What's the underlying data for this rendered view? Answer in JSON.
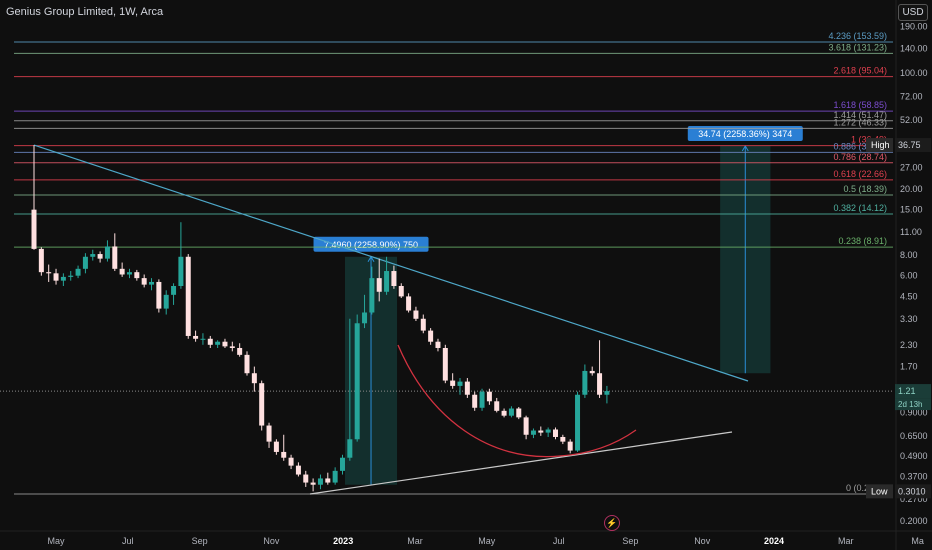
{
  "header": {
    "title": "Genius Group Limited, 1W, Arca",
    "currency": "USD"
  },
  "icons": {
    "flash": "flash-icon"
  },
  "axis": {
    "price_ticks": [
      {
        "label": "190.00",
        "v": 190
      },
      {
        "label": "140.00",
        "v": 140
      },
      {
        "label": "100.00",
        "v": 100
      },
      {
        "label": "72.00",
        "v": 72
      },
      {
        "label": "52.00",
        "v": 52
      },
      {
        "label": "36.75",
        "v": 36.75
      },
      {
        "label": "27.00",
        "v": 27
      },
      {
        "label": "20.00",
        "v": 20
      },
      {
        "label": "15.00",
        "v": 15
      },
      {
        "label": "11.00",
        "v": 11
      },
      {
        "label": "8.00",
        "v": 8
      },
      {
        "label": "6.00",
        "v": 6
      },
      {
        "label": "4.50",
        "v": 4.5
      },
      {
        "label": "3.30",
        "v": 3.3
      },
      {
        "label": "2.30",
        "v": 2.3
      },
      {
        "label": "1.70",
        "v": 1.7
      },
      {
        "label": "1.21",
        "v": 1.21
      },
      {
        "label": "0.9000",
        "v": 0.9
      },
      {
        "label": "0.6500",
        "v": 0.65
      },
      {
        "label": "0.4900",
        "v": 0.49
      },
      {
        "label": "0.3700",
        "v": 0.37
      },
      {
        "label": "0.3010",
        "v": 0.301
      },
      {
        "label": "0.2700",
        "v": 0.27
      },
      {
        "label": "0.2000",
        "v": 0.2
      }
    ],
    "time_ticks": [
      {
        "label": "May",
        "m": 4
      },
      {
        "label": "Jul",
        "m": 6
      },
      {
        "label": "Sep",
        "m": 8
      },
      {
        "label": "Nov",
        "m": 10
      },
      {
        "label": "2023",
        "m": 12,
        "bold": true
      },
      {
        "label": "Mar",
        "m": 14
      },
      {
        "label": "May",
        "m": 16
      },
      {
        "label": "Jul",
        "m": 18
      },
      {
        "label": "Sep",
        "m": 20
      },
      {
        "label": "Nov",
        "m": 22
      },
      {
        "label": "2024",
        "m": 24,
        "bold": true
      },
      {
        "label": "Mar",
        "m": 26
      },
      {
        "label": "Ma",
        "m": 28
      }
    ]
  },
  "price_badges": {
    "high": {
      "tag": "High",
      "value": "36.75",
      "v": 36.75
    },
    "last": {
      "value": "1.21",
      "sub": "2d 13h",
      "v": 1.21
    },
    "low": {
      "tag": "Low",
      "value": "0.3010",
      "v": 0.301
    }
  },
  "fib_levels": [
    {
      "label": "4.236 (153.59)",
      "v": 153.59,
      "color": "#5b9cc4"
    },
    {
      "label": "3.618 (131.23)",
      "v": 131.23,
      "color": "#7fae8a"
    },
    {
      "label": "2.618 (95.04)",
      "v": 95.04,
      "color": "#e0404f"
    },
    {
      "label": "1.618 (58.85)",
      "v": 58.85,
      "color": "#7c4dcf"
    },
    {
      "label": "1.414 (51.47)",
      "v": 51.47,
      "color": "#9e9e9e"
    },
    {
      "label": "1.272 (46.33)",
      "v": 46.33,
      "color": "#9e9e9e"
    },
    {
      "label": "1 (36.49)",
      "v": 36.49,
      "color": "#e0404f"
    },
    {
      "label": "0.886 (33.23)",
      "v": 33.23,
      "color": "#6d88c4"
    },
    {
      "label": "0.786 (28.74)",
      "v": 28.74,
      "color": "#e05a6a"
    },
    {
      "label": "0.618 (22.66)",
      "v": 22.66,
      "color": "#e0404f"
    },
    {
      "label": "0.5 (18.39)",
      "v": 18.39,
      "color": "#7fae8a"
    },
    {
      "label": "0.382 (14.12)",
      "v": 14.12,
      "color": "#4fb0a0"
    },
    {
      "label": "0.238 (8.91)",
      "v": 8.91,
      "color": "#6ab06a"
    },
    {
      "label": "0 (0.2901)",
      "v": 0.2901,
      "color": "#9e9e9e"
    }
  ],
  "measurements": [
    {
      "label": "7.4960 (2258.90%) 750",
      "m1": 12.05,
      "m2": 13.5,
      "low": 0.33,
      "high": 7.8
    },
    {
      "label": "34.74 (2258.36%) 3474",
      "m1": 22.5,
      "m2": 23.9,
      "low": 1.55,
      "high": 36.3
    }
  ],
  "colors": {
    "up": "#26a69a",
    "down": "#ffe0e0",
    "bg": "#0f0f0f"
  },
  "chart_data": {
    "type": "candlestick",
    "title": "Genius Group Limited, 1W, Arca",
    "y_scale": "log",
    "ylim": [
      0.2,
      190
    ],
    "candles": [
      {
        "w": 1,
        "o": 15.0,
        "h": 36.75,
        "l": 8.6,
        "c": 8.7
      },
      {
        "w": 2,
        "o": 8.7,
        "h": 8.9,
        "l": 6.0,
        "c": 6.3
      },
      {
        "w": 3,
        "o": 6.3,
        "h": 7.0,
        "l": 5.5,
        "c": 6.2
      },
      {
        "w": 4,
        "o": 6.2,
        "h": 6.6,
        "l": 5.3,
        "c": 5.6
      },
      {
        "w": 5,
        "o": 5.6,
        "h": 6.2,
        "l": 5.2,
        "c": 5.9
      },
      {
        "w": 6,
        "o": 5.9,
        "h": 6.4,
        "l": 5.6,
        "c": 6.0
      },
      {
        "w": 7,
        "o": 6.0,
        "h": 6.9,
        "l": 5.8,
        "c": 6.6
      },
      {
        "w": 8,
        "o": 6.6,
        "h": 8.2,
        "l": 6.2,
        "c": 7.8
      },
      {
        "w": 9,
        "o": 7.8,
        "h": 8.6,
        "l": 7.4,
        "c": 8.1
      },
      {
        "w": 10,
        "o": 8.1,
        "h": 8.4,
        "l": 7.2,
        "c": 7.6
      },
      {
        "w": 11,
        "o": 7.6,
        "h": 9.8,
        "l": 7.3,
        "c": 9.0
      },
      {
        "w": 12,
        "o": 9.0,
        "h": 10.8,
        "l": 6.4,
        "c": 6.6
      },
      {
        "w": 13,
        "o": 6.6,
        "h": 7.2,
        "l": 5.9,
        "c": 6.1
      },
      {
        "w": 14,
        "o": 6.1,
        "h": 6.6,
        "l": 5.8,
        "c": 6.3
      },
      {
        "w": 15,
        "o": 6.3,
        "h": 6.5,
        "l": 5.6,
        "c": 5.8
      },
      {
        "w": 16,
        "o": 5.8,
        "h": 6.1,
        "l": 5.1,
        "c": 5.3
      },
      {
        "w": 17,
        "o": 5.3,
        "h": 5.8,
        "l": 4.9,
        "c": 5.5
      },
      {
        "w": 18,
        "o": 5.5,
        "h": 5.7,
        "l": 3.6,
        "c": 3.8
      },
      {
        "w": 19,
        "o": 3.8,
        "h": 4.9,
        "l": 3.5,
        "c": 4.6
      },
      {
        "w": 20,
        "o": 4.6,
        "h": 5.4,
        "l": 4.0,
        "c": 5.2
      },
      {
        "w": 21,
        "o": 5.2,
        "h": 12.6,
        "l": 5.0,
        "c": 7.8
      },
      {
        "w": 22,
        "o": 7.8,
        "h": 8.1,
        "l": 2.5,
        "c": 2.6
      },
      {
        "w": 23,
        "o": 2.6,
        "h": 2.8,
        "l": 2.4,
        "c": 2.5
      },
      {
        "w": 24,
        "o": 2.5,
        "h": 2.7,
        "l": 2.3,
        "c": 2.5
      },
      {
        "w": 25,
        "o": 2.5,
        "h": 2.6,
        "l": 2.2,
        "c": 2.3
      },
      {
        "w": 26,
        "o": 2.3,
        "h": 2.45,
        "l": 2.2,
        "c": 2.4
      },
      {
        "w": 27,
        "o": 2.4,
        "h": 2.5,
        "l": 2.2,
        "c": 2.25
      },
      {
        "w": 28,
        "o": 2.25,
        "h": 2.4,
        "l": 2.1,
        "c": 2.2
      },
      {
        "w": 29,
        "o": 2.2,
        "h": 2.35,
        "l": 1.95,
        "c": 2.0
      },
      {
        "w": 30,
        "o": 2.0,
        "h": 2.1,
        "l": 1.5,
        "c": 1.55
      },
      {
        "w": 31,
        "o": 1.55,
        "h": 1.7,
        "l": 1.2,
        "c": 1.35
      },
      {
        "w": 32,
        "o": 1.35,
        "h": 1.4,
        "l": 0.7,
        "c": 0.75
      },
      {
        "w": 33,
        "o": 0.75,
        "h": 0.78,
        "l": 0.55,
        "c": 0.6
      },
      {
        "w": 34,
        "o": 0.6,
        "h": 0.62,
        "l": 0.5,
        "c": 0.52
      },
      {
        "w": 35,
        "o": 0.52,
        "h": 0.66,
        "l": 0.46,
        "c": 0.48
      },
      {
        "w": 36,
        "o": 0.48,
        "h": 0.5,
        "l": 0.41,
        "c": 0.43
      },
      {
        "w": 37,
        "o": 0.43,
        "h": 0.45,
        "l": 0.37,
        "c": 0.38
      },
      {
        "w": 38,
        "o": 0.38,
        "h": 0.4,
        "l": 0.32,
        "c": 0.34
      },
      {
        "w": 39,
        "o": 0.34,
        "h": 0.36,
        "l": 0.301,
        "c": 0.33
      },
      {
        "w": 40,
        "o": 0.33,
        "h": 0.38,
        "l": 0.31,
        "c": 0.36
      },
      {
        "w": 41,
        "o": 0.36,
        "h": 0.39,
        "l": 0.33,
        "c": 0.34
      },
      {
        "w": 42,
        "o": 0.34,
        "h": 0.42,
        "l": 0.33,
        "c": 0.4
      },
      {
        "w": 43,
        "o": 0.4,
        "h": 0.5,
        "l": 0.38,
        "c": 0.48
      },
      {
        "w": 44,
        "o": 0.48,
        "h": 3.3,
        "l": 0.46,
        "c": 0.62
      },
      {
        "w": 45,
        "o": 0.62,
        "h": 3.5,
        "l": 0.6,
        "c": 3.1
      },
      {
        "w": 46,
        "o": 3.1,
        "h": 4.6,
        "l": 2.9,
        "c": 3.6
      },
      {
        "w": 47,
        "o": 3.6,
        "h": 6.8,
        "l": 3.5,
        "c": 5.8
      },
      {
        "w": 48,
        "o": 5.8,
        "h": 7.6,
        "l": 4.2,
        "c": 4.8
      },
      {
        "w": 49,
        "o": 4.8,
        "h": 7.8,
        "l": 4.6,
        "c": 6.4
      },
      {
        "w": 50,
        "o": 6.4,
        "h": 6.9,
        "l": 5.0,
        "c": 5.2
      },
      {
        "w": 51,
        "o": 5.2,
        "h": 5.4,
        "l": 4.4,
        "c": 4.5
      },
      {
        "w": 52,
        "o": 4.5,
        "h": 4.7,
        "l": 3.6,
        "c": 3.7
      },
      {
        "w": 53,
        "o": 3.7,
        "h": 3.9,
        "l": 3.2,
        "c": 3.3
      },
      {
        "w": 54,
        "o": 3.3,
        "h": 3.5,
        "l": 2.7,
        "c": 2.8
      },
      {
        "w": 55,
        "o": 2.8,
        "h": 2.9,
        "l": 2.3,
        "c": 2.4
      },
      {
        "w": 56,
        "o": 2.4,
        "h": 2.5,
        "l": 2.1,
        "c": 2.2
      },
      {
        "w": 57,
        "o": 2.2,
        "h": 2.3,
        "l": 1.35,
        "c": 1.4
      },
      {
        "w": 58,
        "o": 1.4,
        "h": 1.55,
        "l": 1.25,
        "c": 1.3
      },
      {
        "w": 59,
        "o": 1.3,
        "h": 1.45,
        "l": 1.15,
        "c": 1.38
      },
      {
        "w": 60,
        "o": 1.38,
        "h": 1.45,
        "l": 1.1,
        "c": 1.15
      },
      {
        "w": 61,
        "o": 1.15,
        "h": 1.2,
        "l": 0.92,
        "c": 0.96
      },
      {
        "w": 62,
        "o": 0.96,
        "h": 1.25,
        "l": 0.92,
        "c": 1.2
      },
      {
        "w": 63,
        "o": 1.2,
        "h": 1.25,
        "l": 1.0,
        "c": 1.05
      },
      {
        "w": 64,
        "o": 1.05,
        "h": 1.1,
        "l": 0.9,
        "c": 0.92
      },
      {
        "w": 65,
        "o": 0.92,
        "h": 0.95,
        "l": 0.84,
        "c": 0.86
      },
      {
        "w": 66,
        "o": 0.86,
        "h": 0.98,
        "l": 0.84,
        "c": 0.95
      },
      {
        "w": 67,
        "o": 0.95,
        "h": 0.97,
        "l": 0.82,
        "c": 0.84
      },
      {
        "w": 68,
        "o": 0.84,
        "h": 0.86,
        "l": 0.62,
        "c": 0.66
      },
      {
        "w": 69,
        "o": 0.66,
        "h": 0.72,
        "l": 0.63,
        "c": 0.7
      },
      {
        "w": 70,
        "o": 0.7,
        "h": 0.74,
        "l": 0.65,
        "c": 0.68
      },
      {
        "w": 71,
        "o": 0.68,
        "h": 0.73,
        "l": 0.64,
        "c": 0.71
      },
      {
        "w": 72,
        "o": 0.71,
        "h": 0.73,
        "l": 0.62,
        "c": 0.64
      },
      {
        "w": 73,
        "o": 0.64,
        "h": 0.66,
        "l": 0.58,
        "c": 0.6
      },
      {
        "w": 74,
        "o": 0.6,
        "h": 0.62,
        "l": 0.51,
        "c": 0.53
      },
      {
        "w": 75,
        "o": 0.53,
        "h": 1.2,
        "l": 0.52,
        "c": 1.15
      },
      {
        "w": 76,
        "o": 1.15,
        "h": 1.75,
        "l": 1.1,
        "c": 1.6
      },
      {
        "w": 77,
        "o": 1.6,
        "h": 1.7,
        "l": 1.5,
        "c": 1.55
      },
      {
        "w": 78,
        "o": 1.55,
        "h": 2.45,
        "l": 1.1,
        "c": 1.15
      },
      {
        "w": 79,
        "o": 1.15,
        "h": 1.3,
        "l": 1.02,
        "c": 1.21
      }
    ]
  }
}
